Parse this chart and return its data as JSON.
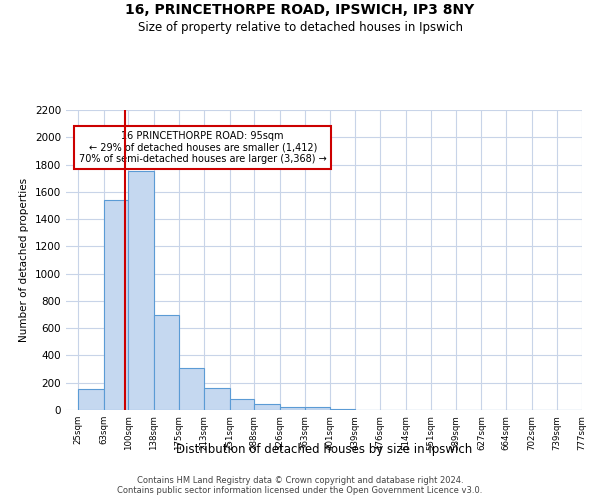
{
  "title_line1": "16, PRINCETHORPE ROAD, IPSWICH, IP3 8NY",
  "title_line2": "Size of property relative to detached houses in Ipswich",
  "xlabel": "Distribution of detached houses by size in Ipswich",
  "ylabel": "Number of detached properties",
  "footer_line1": "Contains HM Land Registry data © Crown copyright and database right 2024.",
  "footer_line2": "Contains public sector information licensed under the Open Government Licence v3.0.",
  "annotation_line1": "16 PRINCETHORPE ROAD: 95sqm",
  "annotation_line2": "← 29% of detached houses are smaller (1,412)",
  "annotation_line3": "70% of semi-detached houses are larger (3,368) →",
  "bar_color": "#c5d8f0",
  "bar_edge_color": "#5b9bd5",
  "property_line_color": "#cc0000",
  "annotation_box_color": "#cc0000",
  "background_color": "#ffffff",
  "grid_color": "#c8d4e8",
  "bins": [
    25,
    63,
    100,
    138,
    175,
    213,
    251,
    288,
    326,
    363,
    401,
    439,
    476,
    514,
    551,
    589,
    627,
    664,
    702,
    739,
    777
  ],
  "values": [
    155,
    1540,
    1750,
    700,
    310,
    160,
    80,
    42,
    25,
    20,
    8,
    3,
    0,
    0,
    0,
    0,
    0,
    0,
    0,
    0
  ],
  "property_size": 95,
  "ylim": [
    0,
    2200
  ],
  "yticks": [
    0,
    200,
    400,
    600,
    800,
    1000,
    1200,
    1400,
    1600,
    1800,
    2000,
    2200
  ],
  "xlim_left": 7,
  "xlim_right": 777
}
